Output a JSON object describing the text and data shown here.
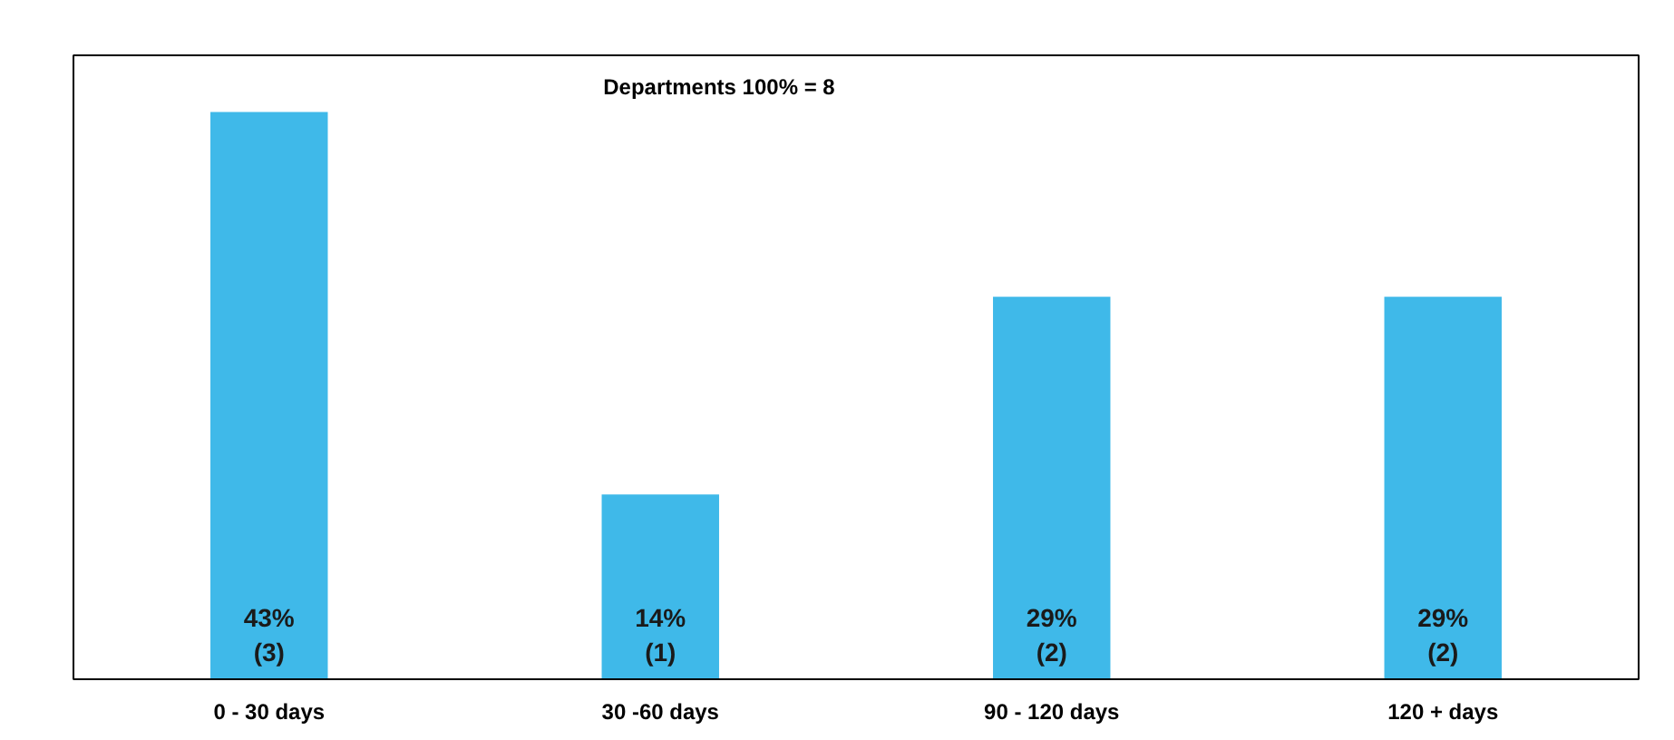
{
  "chart_data": {
    "type": "bar",
    "title": "Departments 100% = 8",
    "categories": [
      "0 - 30 days",
      "30 -60 days",
      "90 - 120 days",
      "120 + days"
    ],
    "values": [
      43,
      14,
      29,
      29
    ],
    "value_labels": [
      "43%\n(3)",
      "14%\n(1)",
      "29%\n(2)",
      "29%\n(2)"
    ],
    "color": "#3fb9e9",
    "grid": false
  }
}
